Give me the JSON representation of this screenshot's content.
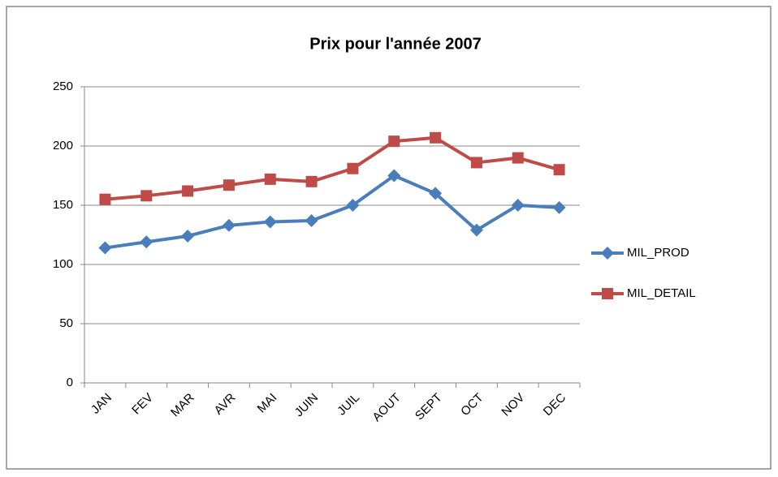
{
  "chart_data": {
    "type": "line",
    "title": "Prix pour l'année 2007",
    "categories": [
      "JAN",
      "FEV",
      "MAR",
      "AVR",
      "MAI",
      "JUIN",
      "JUIL",
      "AOUT",
      "SEPT",
      "OCT",
      "NOV",
      "DEC"
    ],
    "series": [
      {
        "name": "MIL_PROD",
        "color": "#4a7ebb",
        "marker": "diamond",
        "values": [
          114,
          119,
          124,
          133,
          136,
          137,
          150,
          175,
          160,
          129,
          150,
          148
        ]
      },
      {
        "name": "MIL_DETAIL",
        "color": "#be4b48",
        "marker": "square",
        "values": [
          155,
          158,
          162,
          167,
          172,
          170,
          181,
          204,
          207,
          186,
          190,
          180
        ]
      }
    ],
    "ylim": [
      0,
      250
    ],
    "yticks": [
      0,
      50,
      100,
      150,
      200,
      250
    ],
    "grid": true,
    "legend": "right"
  }
}
